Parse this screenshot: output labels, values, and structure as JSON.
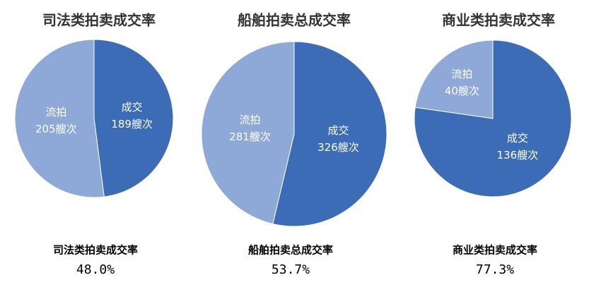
{
  "chart_data": [
    {
      "type": "pie",
      "title": "司法类拍卖成交率",
      "categories": [
        "成交",
        "流拍"
      ],
      "values": [
        189,
        205
      ],
      "value_labels": [
        "189艘次",
        "205艘次"
      ],
      "colors": [
        "#3b6cb5",
        "#8ea8d8"
      ],
      "rate_label": "48.0%"
    },
    {
      "type": "pie",
      "title": "船舶拍卖总成交率",
      "categories": [
        "成交",
        "流拍"
      ],
      "values": [
        326,
        281
      ],
      "value_labels": [
        "326艘次",
        "281艘次"
      ],
      "colors": [
        "#3b6cb5",
        "#8ea8d8"
      ],
      "rate_label": "53.7%"
    },
    {
      "type": "pie",
      "title": "商业类拍卖成交率",
      "categories": [
        "成交",
        "流拍"
      ],
      "values": [
        136,
        40
      ],
      "value_labels": [
        "136艘次",
        "40艘次"
      ],
      "colors": [
        "#3b6cb5",
        "#8ea8d8"
      ],
      "rate_label": "77.3%"
    }
  ]
}
